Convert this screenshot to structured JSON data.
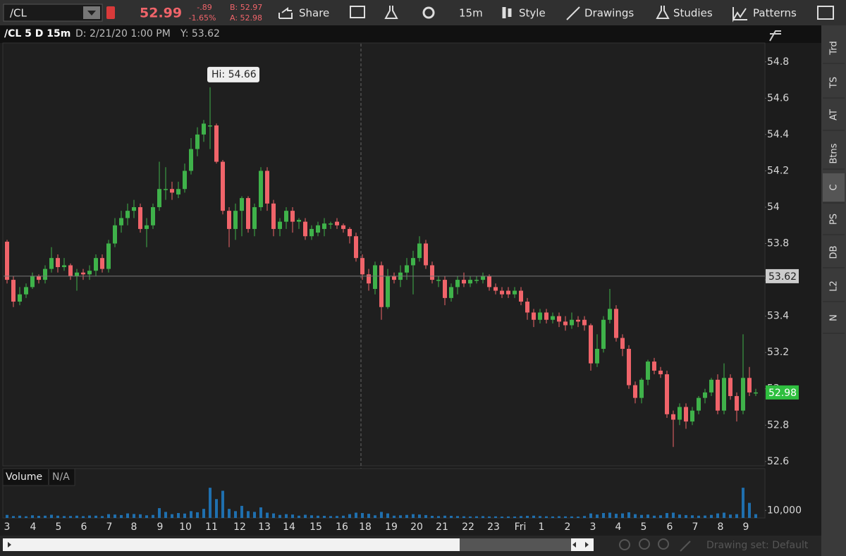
{
  "toolbar": {
    "symbol": "/CL",
    "last": "52.99",
    "change": "-.89",
    "change_pct": "-1.65%",
    "bid": "B: 52.97",
    "ask": "A: 52.98",
    "share": "Share",
    "interval": "15m",
    "style": "Style",
    "drawings": "Drawings",
    "studies": "Studies",
    "patterns": "Patterns"
  },
  "chart_header": {
    "title": "/CL 5 D 15m",
    "date": "D: 2/21/20 1:00 PM",
    "y": "Y: 53.62"
  },
  "chart_data": [
    {
      "type": "candlestick",
      "up_color": "#3fb24a",
      "down_color": "#f0646a",
      "open": [
        53.81,
        53.6,
        53.48,
        53.52,
        53.56,
        53.62,
        53.6,
        53.66,
        53.72,
        53.67,
        53.68,
        53.62,
        53.64,
        53.63,
        53.65,
        53.72,
        53.66,
        53.8,
        53.9,
        53.94,
        53.98,
        54.0,
        53.88,
        53.9,
        54.0,
        54.1,
        54.1,
        54.07,
        54.1,
        54.2,
        54.32,
        54.4,
        54.45,
        54.45,
        54.25,
        53.98,
        53.88,
        53.98,
        54.05,
        53.88,
        54.0,
        54.2,
        54.02,
        53.88,
        53.92,
        53.98,
        53.92,
        53.92,
        53.84,
        53.86,
        53.88,
        53.91,
        53.92,
        53.9,
        53.88,
        53.84,
        53.72,
        53.63,
        53.55,
        53.68,
        53.45,
        53.62,
        53.6,
        53.64,
        53.68,
        53.72,
        53.8,
        53.68,
        53.6,
        53.6,
        53.5,
        53.56,
        53.6,
        53.58,
        53.6,
        53.6,
        53.62,
        53.56,
        53.54,
        53.54,
        53.52,
        53.54,
        53.48,
        53.42,
        53.38,
        53.42,
        53.38,
        53.4,
        53.37,
        53.35,
        53.38,
        53.38,
        53.35,
        53.14,
        53.22,
        53.38,
        53.44,
        53.28,
        53.22,
        53.02,
        52.95,
        53.05,
        53.15,
        53.1,
        53.08,
        52.86,
        52.83,
        52.9,
        52.82,
        52.88,
        52.95,
        52.98,
        53.05,
        52.88,
        53.06,
        52.96,
        52.88,
        53.06,
        52.98
      ],
      "high": [
        53.82,
        53.62,
        53.56,
        53.58,
        53.64,
        53.63,
        53.68,
        53.78,
        53.74,
        53.72,
        53.69,
        53.66,
        53.66,
        53.68,
        53.74,
        53.74,
        53.82,
        53.94,
        53.98,
        54.02,
        54.04,
        54.02,
        53.94,
        54.02,
        54.25,
        54.22,
        54.14,
        54.14,
        54.24,
        54.38,
        54.44,
        54.48,
        54.66,
        54.46,
        54.26,
        54.0,
        54.02,
        54.06,
        54.06,
        54.02,
        54.22,
        54.22,
        54.04,
        53.94,
        54.0,
        54.0,
        53.94,
        53.94,
        53.9,
        53.92,
        53.94,
        53.92,
        53.94,
        53.91,
        53.89,
        53.86,
        53.74,
        53.66,
        53.7,
        53.7,
        53.66,
        53.64,
        53.68,
        53.72,
        53.76,
        53.84,
        53.82,
        53.7,
        53.62,
        53.62,
        53.58,
        53.62,
        53.64,
        53.62,
        53.62,
        53.64,
        53.63,
        53.58,
        53.56,
        53.56,
        53.56,
        53.56,
        53.5,
        53.44,
        53.44,
        53.44,
        53.42,
        53.42,
        53.4,
        53.42,
        53.4,
        53.4,
        53.36,
        53.3,
        53.4,
        53.55,
        53.46,
        53.3,
        53.24,
        53.04,
        53.06,
        53.16,
        53.17,
        53.12,
        53.1,
        52.88,
        52.92,
        52.92,
        52.9,
        52.96,
        53.0,
        53.06,
        53.08,
        53.14,
        53.08,
        52.98,
        53.3,
        53.12,
        53.0
      ],
      "low": [
        53.58,
        53.45,
        53.46,
        53.5,
        53.55,
        53.58,
        53.58,
        53.64,
        53.64,
        53.65,
        53.6,
        53.54,
        53.6,
        53.6,
        53.62,
        53.64,
        53.64,
        53.78,
        53.86,
        53.9,
        53.94,
        53.86,
        53.78,
        53.88,
        53.98,
        54.04,
        54.04,
        54.05,
        54.08,
        54.18,
        54.28,
        54.36,
        54.32,
        54.24,
        53.96,
        53.78,
        53.82,
        53.84,
        53.86,
        53.84,
        53.98,
        53.98,
        53.84,
        53.84,
        53.88,
        53.86,
        53.88,
        53.82,
        53.82,
        53.84,
        53.84,
        53.88,
        53.88,
        53.86,
        53.8,
        53.7,
        53.6,
        53.54,
        53.52,
        53.38,
        53.44,
        53.58,
        53.56,
        53.6,
        53.52,
        53.7,
        53.66,
        53.58,
        53.56,
        53.46,
        53.48,
        53.52,
        53.56,
        53.56,
        53.58,
        53.58,
        53.54,
        53.52,
        53.5,
        53.5,
        53.5,
        53.46,
        53.38,
        53.34,
        53.36,
        53.36,
        53.36,
        53.34,
        53.32,
        53.33,
        53.34,
        53.32,
        53.1,
        53.12,
        53.2,
        53.36,
        53.26,
        53.18,
        53.0,
        52.92,
        52.92,
        53.02,
        53.08,
        53.06,
        52.84,
        52.68,
        52.8,
        52.78,
        52.8,
        52.86,
        52.92,
        52.96,
        52.86,
        52.86,
        52.94,
        52.82,
        52.86,
        52.96,
        52.96
      ],
      "close": [
        53.6,
        53.48,
        53.52,
        53.56,
        53.62,
        53.6,
        53.66,
        53.72,
        53.67,
        53.68,
        53.62,
        53.64,
        53.63,
        53.65,
        53.72,
        53.66,
        53.8,
        53.9,
        53.94,
        53.98,
        54.0,
        53.88,
        53.9,
        54.0,
        54.1,
        54.1,
        54.08,
        54.1,
        54.2,
        54.32,
        54.4,
        54.46,
        54.45,
        54.25,
        53.98,
        53.88,
        53.98,
        54.05,
        53.88,
        54.0,
        54.2,
        54.02,
        53.88,
        53.92,
        53.98,
        53.92,
        53.93,
        53.84,
        53.88,
        53.9,
        53.91,
        53.91,
        53.9,
        53.88,
        53.84,
        53.72,
        53.63,
        53.58,
        53.68,
        53.45,
        53.62,
        53.6,
        53.64,
        53.68,
        53.72,
        53.8,
        53.68,
        53.6,
        53.6,
        53.5,
        53.56,
        53.6,
        53.58,
        53.6,
        53.6,
        53.62,
        53.56,
        53.54,
        53.52,
        53.52,
        53.54,
        53.48,
        53.42,
        53.38,
        53.42,
        53.38,
        53.4,
        53.37,
        53.35,
        53.38,
        53.37,
        53.35,
        53.14,
        53.22,
        53.38,
        53.44,
        53.28,
        53.22,
        53.02,
        52.95,
        53.05,
        53.15,
        53.1,
        53.08,
        52.86,
        52.83,
        52.9,
        52.82,
        52.88,
        52.95,
        52.98,
        53.05,
        52.88,
        53.06,
        52.96,
        52.88,
        53.06,
        52.98,
        52.98
      ],
      "ylim": [
        52.58,
        54.9
      ],
      "yticks": [
        52.6,
        52.8,
        53,
        53.2,
        53.4,
        53.6,
        53.8,
        54,
        54.2,
        54.4,
        54.6,
        54.8
      ],
      "x_labels": [
        "3",
        "4",
        "5",
        "6",
        "7",
        "8",
        "9",
        "10",
        "11",
        "12",
        "13",
        "14",
        "15",
        "16",
        "18",
        "19",
        "20",
        "21",
        "22",
        "23",
        "Fri",
        "1",
        "2",
        "3",
        "4",
        "5",
        "6",
        "7",
        "8",
        "9"
      ],
      "high_label": "Hi: 54.66",
      "crosshair_value": 53.62,
      "last_value": 52.98
    },
    {
      "type": "bar",
      "title": "Volume",
      "value_text": "N/A",
      "color": "#1f6fae",
      "values": [
        4000,
        2500,
        3000,
        2200,
        3500,
        2800,
        3000,
        4200,
        3000,
        2500,
        2600,
        3000,
        2400,
        3200,
        3000,
        2500,
        5000,
        4500,
        3800,
        6000,
        5200,
        4800,
        3500,
        4000,
        13000,
        8000,
        5000,
        6500,
        5800,
        9000,
        7500,
        12000,
        40000,
        25000,
        36000,
        12000,
        9000,
        16000,
        9000,
        8000,
        14000,
        7000,
        6000,
        4000,
        5000,
        4500,
        3000,
        4200,
        3500,
        3000,
        2800,
        2500,
        2600,
        3000,
        5000,
        7000,
        6500,
        5500,
        3500,
        8000,
        6000,
        3000,
        3500,
        4000,
        5000,
        4500,
        3800,
        2800,
        2500,
        3000,
        2800,
        2500,
        2200,
        2000,
        2200,
        2400,
        2000,
        2100,
        1800,
        2000,
        1900,
        2500,
        2800,
        3000,
        2500,
        2200,
        2000,
        2300,
        2100,
        2000,
        1800,
        2600,
        6000,
        4500,
        6500,
        7000,
        5500,
        6000,
        7500,
        5000,
        4000,
        4500,
        3000,
        3500,
        6500,
        7000,
        4500,
        3800,
        3500,
        3000,
        3200,
        4000,
        6000,
        7000,
        4500,
        5000,
        40000,
        20000,
        5000
      ],
      "ylim": [
        0,
        42000
      ],
      "yticks": [
        {
          "value": 10000,
          "label": "10,000"
        }
      ]
    }
  ],
  "sidebar": {
    "tabs": [
      "Trd",
      "TS",
      "AT",
      "Btns",
      "C",
      "PS",
      "DB",
      "L2",
      "N"
    ]
  },
  "footer": {
    "drawing_set": "Drawing set: Default"
  }
}
